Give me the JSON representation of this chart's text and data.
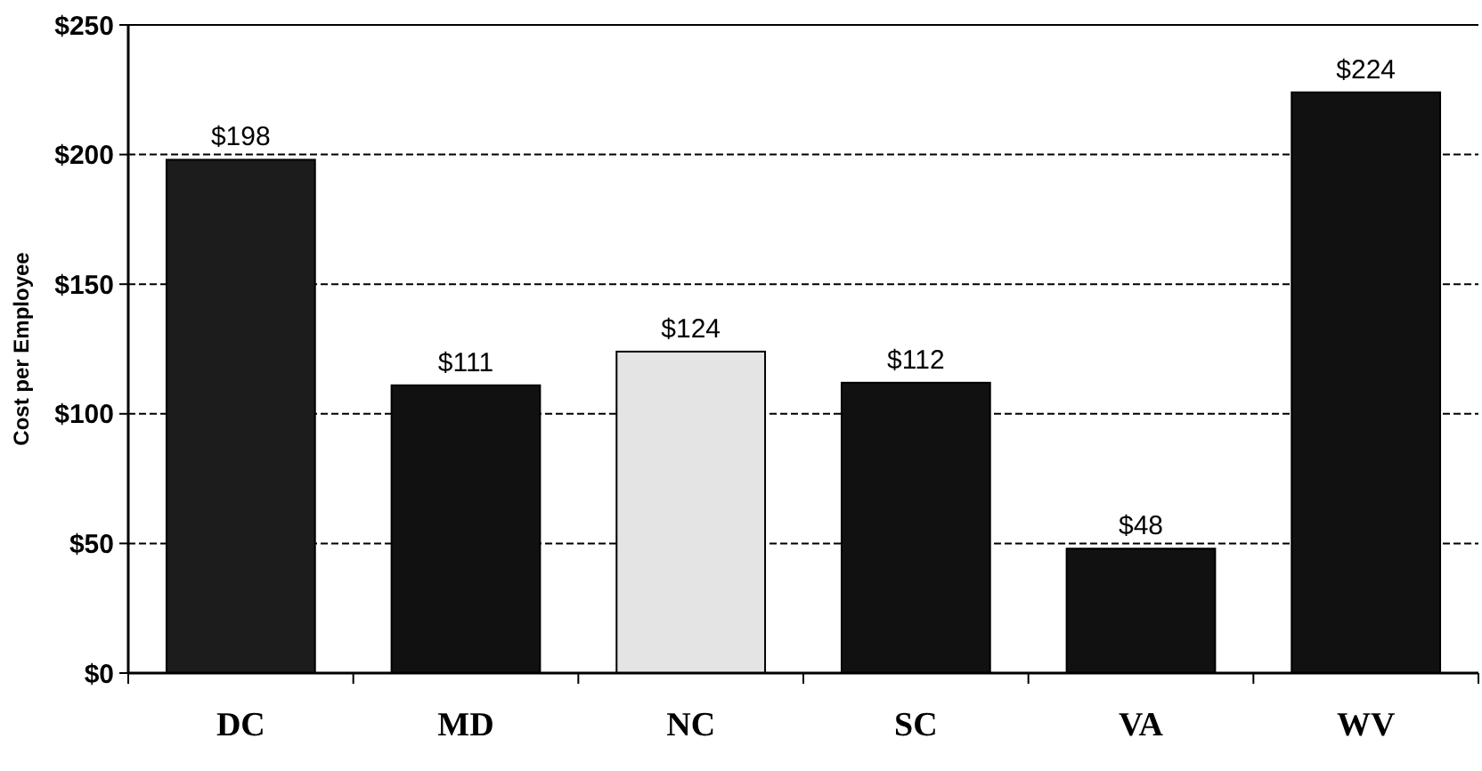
{
  "chart_data": {
    "type": "bar",
    "ylabel": "Cost per Employee",
    "categories": [
      "DC",
      "MD",
      "NC",
      "SC",
      "VA",
      "WV"
    ],
    "values": [
      198,
      111,
      124,
      112,
      48,
      224
    ],
    "colors": [
      "#1c1c1c",
      "#111111",
      "#e4e4e4",
      "#111111",
      "#111111",
      "#111111"
    ],
    "value_labels": [
      "$198",
      "$111",
      "$124",
      "$112",
      "$48",
      "$224"
    ],
    "ylim": [
      0,
      250
    ],
    "yticks": [
      {
        "value": 0,
        "label": "$0"
      },
      {
        "value": 50,
        "label": "$50"
      },
      {
        "value": 100,
        "label": "$100"
      },
      {
        "value": 150,
        "label": "$150"
      },
      {
        "value": 200,
        "label": "$200"
      },
      {
        "value": 250,
        "label": "$250"
      }
    ],
    "grid": "y",
    "line_style": "dashed"
  }
}
